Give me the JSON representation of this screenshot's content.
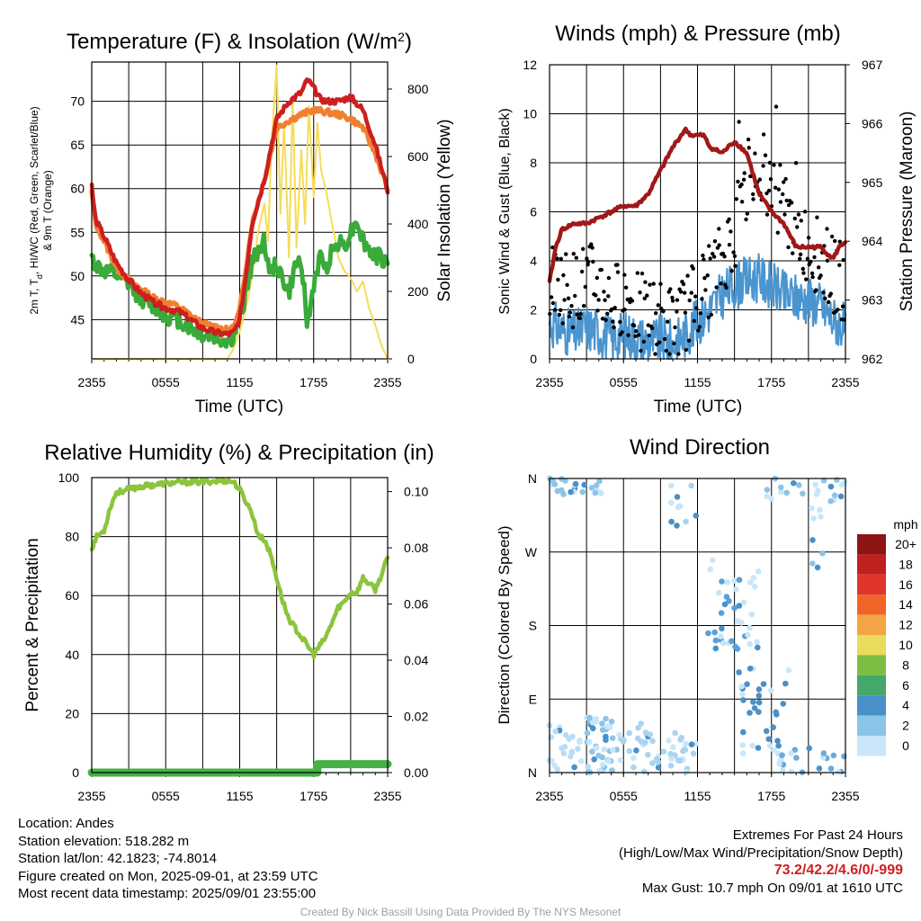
{
  "colors": {
    "temp_red": "#cc1f1f",
    "dewpoint_green": "#3aaa3a",
    "nine_m_orange": "#f08030",
    "insolation_yellow": "#f5dc5a",
    "wind_blue": "#4a95d0",
    "gust_black": "#000000",
    "pressure_maroon": "#a01818",
    "rh_green": "#8cc43c",
    "precip_green": "#44b244"
  },
  "chart_data": [
    {
      "type": "line",
      "id": "temperature",
      "title": "Temperature (F) & Insolation (W/m",
      "title_sup": "2",
      "title_end": ")",
      "xlabel": "Time (UTC)",
      "ylabel_left_line1": "2m T, T",
      "ylabel_left_sub": "d",
      "ylabel_left_rest": ", HI/WC (Red, Green, Scarlet/Blue)",
      "ylabel_left_line2": "& 9m T (Orange)",
      "ylabel_right": "Solar Insolation (Yellow)",
      "x_ticks": [
        "2355",
        "0555",
        "1155",
        "1755",
        "2355"
      ],
      "x_range_hours": [
        0,
        24
      ],
      "ylim_left": [
        40.5,
        74.5
      ],
      "yticks_left": [
        45,
        50,
        55,
        60,
        65,
        70
      ],
      "ylim_right": [
        0,
        880
      ],
      "yticks_right": [
        0,
        200,
        400,
        600,
        800
      ],
      "grid": true,
      "series": [
        {
          "key": "t9m",
          "axis": "left",
          "color_key": "nine_m_orange",
          "x": [
            0,
            0.3,
            1,
            2,
            3,
            4,
            5,
            6,
            7,
            8,
            9,
            10,
            11,
            11.5,
            12,
            12.5,
            13,
            14,
            15,
            16,
            17,
            18,
            19,
            20,
            21,
            22,
            23,
            24
          ],
          "y": [
            59.5,
            56,
            54,
            51,
            49.5,
            48.5,
            47.5,
            47,
            46.5,
            45.5,
            44.5,
            44.2,
            43.8,
            44,
            46,
            51,
            56,
            61,
            67,
            67.8,
            68.5,
            69,
            68.8,
            68.5,
            68,
            67,
            64,
            60
          ]
        },
        {
          "key": "t2m",
          "axis": "left",
          "color_key": "temp_red",
          "x": [
            0,
            0.3,
            1,
            2,
            3,
            4,
            5,
            6,
            7,
            8,
            9,
            10,
            11,
            11.5,
            12,
            12.5,
            13,
            14,
            15,
            16,
            17,
            17.5,
            18,
            18.5,
            19,
            20,
            21,
            22,
            23,
            24
          ],
          "y": [
            60.3,
            56.5,
            54.5,
            51.5,
            49.5,
            48,
            47,
            46.3,
            46,
            45,
            44,
            43.5,
            43.3,
            43.5,
            45,
            50,
            56,
            61,
            68,
            70,
            71,
            72.5,
            71.5,
            70.3,
            70,
            70,
            70.5,
            69,
            65,
            59.8
          ]
        },
        {
          "key": "td",
          "axis": "left",
          "color_key": "dewpoint_green",
          "x": [
            0,
            0.5,
            1,
            2,
            3,
            4,
            5,
            6,
            7,
            8,
            9,
            10,
            11,
            11.5,
            12,
            12.5,
            13,
            13.5,
            14,
            14.5,
            15,
            15.5,
            16,
            16.5,
            17,
            17.5,
            18,
            18.5,
            19,
            19.5,
            20,
            20.5,
            21,
            21.5,
            22,
            22.5,
            23,
            24
          ],
          "y": [
            52,
            51,
            50.5,
            50,
            49,
            47.5,
            46.5,
            45.5,
            45,
            44,
            43.2,
            43,
            42.5,
            43,
            45,
            48,
            51.5,
            53,
            54,
            50,
            51.5,
            49.5,
            48,
            51,
            52,
            44,
            49,
            52,
            51,
            53,
            54,
            53.5,
            55,
            56.5,
            54,
            53,
            52.3,
            51.7
          ]
        },
        {
          "key": "insolation",
          "axis": "right",
          "color_key": "insolation_yellow",
          "x": [
            0,
            11,
            11.5,
            12,
            12.5,
            13,
            13.5,
            14,
            14.3,
            14.6,
            15,
            15.3,
            15.6,
            16,
            16.3,
            16.6,
            17,
            17.3,
            17.6,
            18,
            18.3,
            18.6,
            19,
            19.5,
            20,
            20.5,
            21,
            21.5,
            22,
            22.5,
            23,
            23.5,
            24
          ],
          "y": [
            0,
            0,
            30,
            80,
            150,
            240,
            380,
            460,
            350,
            650,
            870,
            430,
            700,
            300,
            780,
            330,
            620,
            400,
            750,
            480,
            700,
            560,
            500,
            400,
            300,
            260,
            240,
            200,
            230,
            150,
            100,
            40,
            0
          ]
        }
      ]
    },
    {
      "type": "line",
      "id": "winds",
      "title": "Winds (mph) & Pressure (mb)",
      "xlabel": "Time (UTC)",
      "ylabel_left": "Sonic Wind & Gust (Blue, Black)",
      "ylabel_right": "Station Pressure (Maroon)",
      "x_ticks": [
        "2355",
        "0555",
        "1155",
        "1755",
        "2355"
      ],
      "ylim_left": [
        0,
        12
      ],
      "yticks_left": [
        0,
        2,
        4,
        6,
        8,
        10,
        12
      ],
      "ylim_right": [
        962,
        967
      ],
      "yticks_right": [
        962,
        963,
        964,
        965,
        966,
        967
      ],
      "grid": true,
      "series": [
        {
          "key": "sonic_wind",
          "axis": "left",
          "color_key": "wind_blue",
          "x": [
            0,
            1,
            2,
            3,
            4,
            5,
            6,
            7,
            8,
            9,
            10,
            11,
            12,
            13,
            14,
            15,
            16,
            17,
            18,
            19,
            20,
            21,
            22,
            23,
            24
          ],
          "y": [
            1.5,
            1.2,
            1.0,
            1.3,
            1.1,
            0.8,
            1.0,
            0.9,
            0.7,
            0.8,
            0.6,
            1.0,
            1.5,
            2.0,
            2.6,
            3.0,
            3.2,
            3.3,
            3.0,
            2.6,
            2.5,
            2.4,
            2.2,
            1.6,
            1.3
          ]
        },
        {
          "key": "gust",
          "axis": "left",
          "color_key": "gust_black",
          "marker": "dot",
          "x": [
            0,
            1,
            2,
            3,
            4,
            5,
            6,
            7,
            8,
            9,
            10,
            11,
            12,
            13,
            14,
            15,
            16,
            17,
            18,
            19,
            20,
            21,
            22,
            23,
            24
          ],
          "y": [
            3.2,
            3.0,
            2.8,
            3.2,
            3.0,
            2.2,
            2.6,
            2.0,
            1.8,
            1.6,
            1.4,
            1.8,
            2.6,
            3.2,
            4.0,
            5.2,
            7.0,
            8.0,
            7.2,
            6.2,
            5.2,
            4.6,
            4.0,
            3.5,
            3.0
          ]
        },
        {
          "key": "pressure",
          "axis": "right",
          "color_key": "pressure_maroon",
          "x": [
            0,
            0.5,
            1,
            2,
            3,
            4,
            5,
            6,
            7,
            8,
            9,
            10,
            11,
            11.5,
            12,
            12.5,
            13,
            14,
            15,
            16,
            17,
            18,
            19,
            20,
            21,
            22,
            22.5,
            23,
            23.5,
            24
          ],
          "y": [
            963.3,
            963.9,
            964.2,
            964.3,
            964.3,
            964.4,
            964.5,
            964.6,
            964.6,
            964.8,
            965.2,
            965.6,
            965.9,
            965.8,
            965.8,
            965.8,
            965.6,
            965.5,
            965.7,
            965.5,
            964.8,
            964.5,
            964.3,
            963.9,
            963.9,
            963.9,
            963.8,
            963.7,
            963.9,
            964.0
          ]
        }
      ]
    },
    {
      "type": "line",
      "id": "humidity",
      "title": "Relative Humidity (%) & Precipitation (in)",
      "ylabel_left": "Percent & Precipitation",
      "x_ticks": [
        "2355",
        "0555",
        "1155",
        "1755",
        "2355"
      ],
      "ylim_left": [
        0,
        100
      ],
      "yticks_left": [
        0,
        20,
        40,
        60,
        80,
        100
      ],
      "ylim_right": [
        0,
        0.105
      ],
      "yticks_right": [
        "0.00",
        "0.02",
        "0.04",
        "0.06",
        "0.08",
        "0.10"
      ],
      "yticks_right_values": [
        0,
        0.02,
        0.04,
        0.06,
        0.08,
        0.1
      ],
      "grid": true,
      "series": [
        {
          "key": "rh",
          "axis": "left",
          "color_key": "rh_green",
          "x": [
            0,
            0.4,
            1,
            1.5,
            2,
            3,
            4,
            5,
            6,
            7,
            8,
            9,
            10,
            11,
            11.5,
            12,
            12.5,
            13,
            13.3,
            13.6,
            14,
            14.5,
            15,
            15.5,
            16,
            16.5,
            17,
            17.5,
            18,
            18.5,
            19,
            19.5,
            20,
            20.5,
            21,
            21.5,
            22,
            22.5,
            23,
            23.5,
            24
          ],
          "y": [
            76,
            80,
            82,
            90,
            95,
            96,
            97,
            97.5,
            98,
            98.3,
            98.5,
            98.5,
            98.8,
            99,
            98.5,
            96,
            92,
            88,
            83,
            80,
            79,
            74,
            66,
            58,
            52,
            49,
            46,
            43,
            40,
            43,
            46,
            51,
            56,
            58,
            61,
            61,
            66,
            64,
            62,
            67,
            73
          ]
        },
        {
          "key": "precip",
          "axis": "right",
          "color_key": "precip_green",
          "x": [
            0,
            18.3,
            18.3,
            24
          ],
          "y": [
            0,
            0,
            0.003,
            0.003
          ]
        }
      ]
    },
    {
      "type": "scatter",
      "id": "wind_direction",
      "title": "Wind Direction",
      "ylabel_left": "Direction (Colored By Speed)",
      "x_ticks": [
        "2355",
        "0555",
        "1155",
        "1755",
        "2355"
      ],
      "y_categories": [
        "N",
        "E",
        "S",
        "W",
        "N"
      ],
      "ylim_degrees": [
        0,
        360
      ],
      "grid": true,
      "colorbar": {
        "unit": "mph",
        "labels": [
          "20+",
          "18",
          "16",
          "14",
          "12",
          "10",
          "8",
          "6",
          "4",
          "2",
          "0"
        ],
        "colors": [
          "#8c1414",
          "#c0201e",
          "#e0342c",
          "#f06428",
          "#f4a444",
          "#e8dc5a",
          "#7cbe44",
          "#44a868",
          "#4a90c8",
          "#8cc4e8",
          "#c8e6f8"
        ]
      },
      "cluster_degrees": [
        {
          "x": [
            0,
            4.5
          ],
          "y": [
            340,
            360
          ],
          "color": "#8cc4e8",
          "count": 24
        },
        {
          "x": [
            3,
            5.5
          ],
          "y": [
            0,
            70
          ],
          "color": "#8cc4e8",
          "count": 45
        },
        {
          "x": [
            5.5,
            12
          ],
          "y": [
            0,
            60
          ],
          "color": "#a8d4f0",
          "count": 50
        },
        {
          "x": [
            9,
            12
          ],
          "y": [
            300,
            355
          ],
          "color": "#a8d4f0",
          "count": 10
        },
        {
          "x": [
            0,
            3.5
          ],
          "y": [
            0,
            60
          ],
          "color": "#b8dcf4",
          "count": 25
        },
        {
          "x": [
            12.8,
            17
          ],
          "y": [
            150,
            260
          ],
          "color": "#5aa0d8",
          "count": 40
        },
        {
          "x": [
            15,
            19.5
          ],
          "y": [
            20,
            130
          ],
          "color": "#4a90c8",
          "count": 35
        },
        {
          "x": [
            18.5,
            24
          ],
          "y": [
            0,
            30
          ],
          "color": "#6aaadc",
          "count": 20
        },
        {
          "x": [
            17.5,
            24
          ],
          "y": [
            330,
            360
          ],
          "color": "#8cc4e8",
          "count": 22
        },
        {
          "x": [
            21,
            23
          ],
          "y": [
            240,
            330
          ],
          "color": "#8cc4e8",
          "count": 8
        }
      ]
    }
  ],
  "station": {
    "location": "Location: Andes",
    "elevation": "Station elevation: 518.282 m",
    "latlon": "Station lat/lon: 42.1823; -74.8014",
    "created": "Figure created on Mon, 2025-09-01, at 23:59 UTC",
    "recent": "Most recent data timestamp: 2025/09/01 23:55:00"
  },
  "extremes": {
    "heading": "Extremes For Past 24 Hours",
    "subheading": "(High/Low/Max Wind/Precipitation/Snow Depth)",
    "values": "73.2/42.2/4.6/0/-999",
    "max_gust": "Max Gust: 10.7 mph On 09/01 at 1610 UTC"
  },
  "credit": "Created By Nick Bassill Using Data Provided By The NYS Mesonet"
}
